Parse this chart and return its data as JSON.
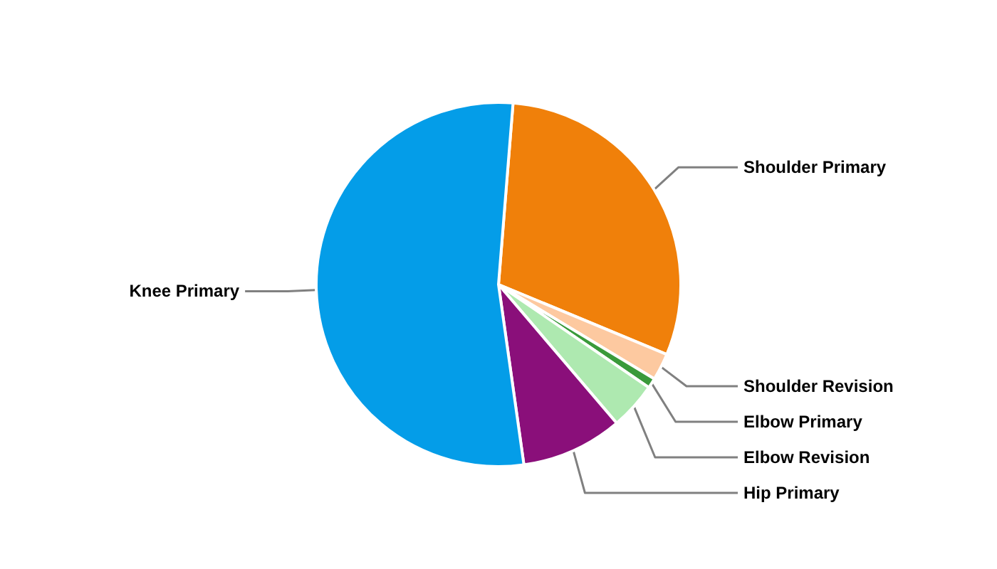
{
  "chart_data": {
    "type": "pie",
    "categories": [
      "Shoulder Primary",
      "Shoulder Revision",
      "Elbow Primary",
      "Elbow Revision",
      "Hip Primary",
      "Knee Primary"
    ],
    "values": [
      30,
      2.4,
      0.9,
      4.2,
      9,
      53.5
    ],
    "colors": [
      "#f0800a",
      "#fdc9a0",
      "#3a9a3a",
      "#aee9b0",
      "#8a0f7a",
      "#049de8"
    ]
  }
}
